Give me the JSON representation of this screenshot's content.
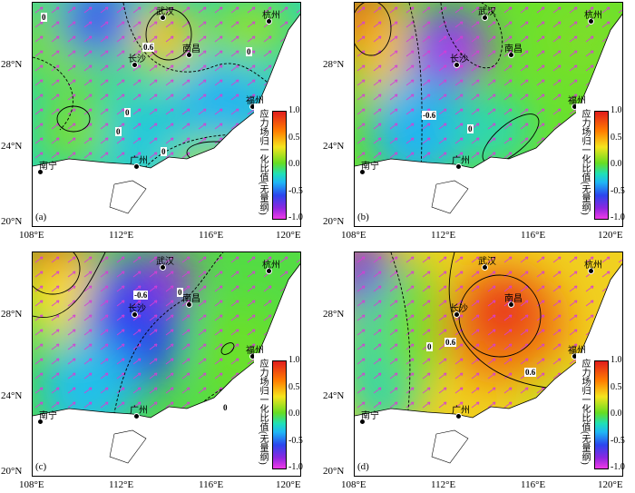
{
  "axes": {
    "lon_ticks": [
      "108°E",
      "112°E",
      "116°E",
      "120°E"
    ],
    "lat_ticks": [
      "28°N",
      "24°N",
      "20°N"
    ]
  },
  "colorbar": {
    "title": "应力场归一化比值(无量纲)",
    "ticks": [
      "1.0",
      "0.5",
      "0.0",
      "-0.5",
      "-1.0"
    ],
    "range": [
      -1.0,
      1.0
    ],
    "colors": [
      "#e11d1d",
      "#ff7d00",
      "#f5e51e",
      "#66dd22",
      "#1fe0b7",
      "#1fb7f5",
      "#2b46ee",
      "#8d27e0",
      "#ef3ae6"
    ]
  },
  "cities": {
    "wuhan": "武汉",
    "hangzhou": "杭州",
    "changsha": "长沙",
    "nanchang": "南昌",
    "fuzhou": "福州",
    "nanning": "南宁",
    "guangzhou": "广州"
  },
  "panels": [
    {
      "label": "(a)",
      "contours": [
        "0",
        "0.6",
        "0",
        "0",
        "0",
        "0"
      ]
    },
    {
      "label": "(b)",
      "contours": [
        "-0.6",
        "0"
      ]
    },
    {
      "label": "(c)",
      "contours": [
        "-0.6",
        "0",
        "0"
      ]
    },
    {
      "label": "(d)",
      "contours": [
        "0.6",
        "0",
        "0.6"
      ]
    }
  ]
}
